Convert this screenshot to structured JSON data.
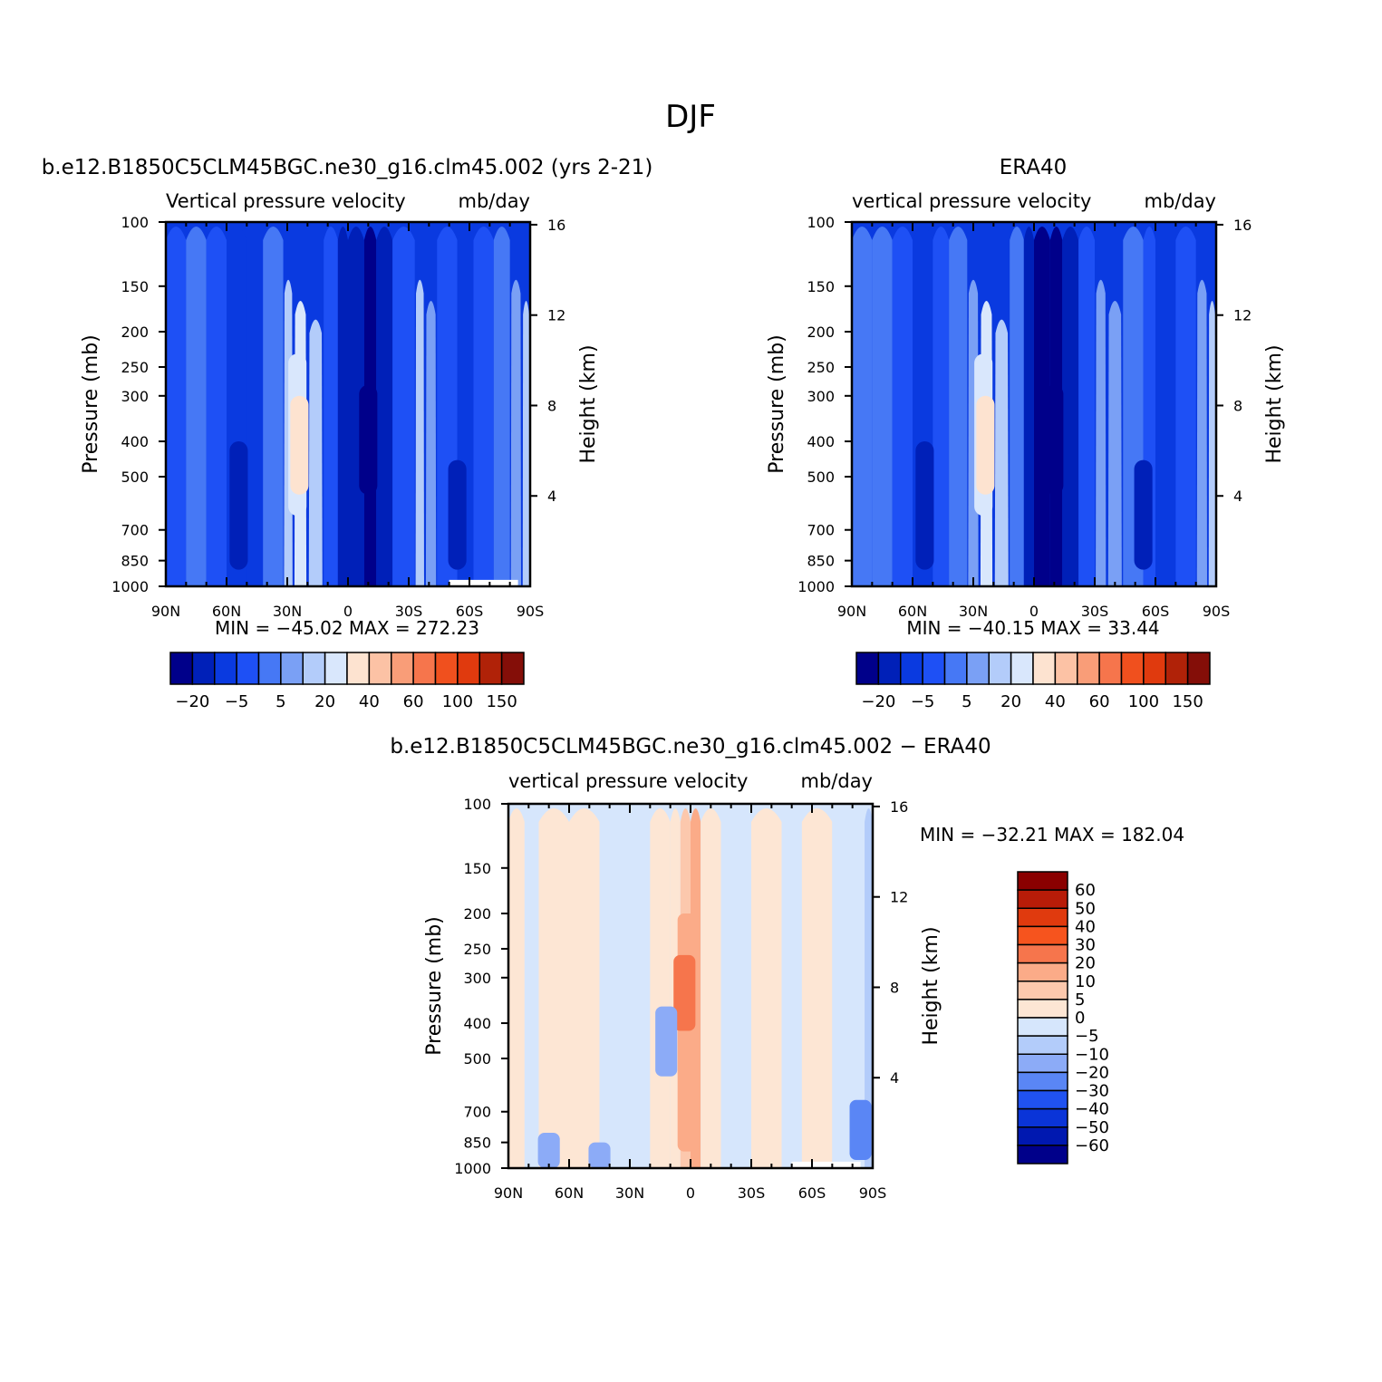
{
  "figure": {
    "title": "DJF"
  },
  "chart_data": [
    {
      "type": "heatmap",
      "title": "b.e12.B1850C5CLM45BGC.ne30_g16.clm45.002 (yrs 2-21)",
      "subtitle_left": "Vertical pressure velocity",
      "units": "mb/day",
      "xlabel": "",
      "ylabel": "Pressure (mb)",
      "ylabel_right": "Height (km)",
      "x_ticks": [
        "90N",
        "60N",
        "30N",
        "0",
        "30S",
        "60S",
        "90S"
      ],
      "y_ticks": [
        100,
        150,
        200,
        250,
        300,
        400,
        500,
        700,
        850,
        1000
      ],
      "y_ticks_right": [
        16,
        12,
        8,
        4
      ],
      "ylim": [
        1000,
        100
      ],
      "y_scale": "log",
      "stats": "MIN = -45.02   MAX = 272.23",
      "colorbar": {
        "orientation": "horizontal",
        "labels": [
          "-20",
          "-5",
          "5",
          "20",
          "40",
          "60",
          "100",
          "150"
        ],
        "colors": [
          "#00008a",
          "#0020b8",
          "#0a3ae0",
          "#1e50f5",
          "#4678f5",
          "#7aa0f5",
          "#b3ccfa",
          "#d9e7fc",
          "#fde3d0",
          "#fcc2a5",
          "#f99d78",
          "#f6754c",
          "#f0501e",
          "#e03a0e",
          "#b02208",
          "#840e08"
        ]
      },
      "bands": [
        {
          "lat": 90,
          "c": 3
        },
        {
          "lat": 80,
          "c": 4
        },
        {
          "lat": 70,
          "c": 3
        },
        {
          "lat": 60,
          "c": 2
        },
        {
          "lat": 50,
          "c": 2
        },
        {
          "lat": 42,
          "c": 4
        },
        {
          "lat": 32,
          "c": 6
        },
        {
          "lat": 27,
          "c": 7
        },
        {
          "lat": 20,
          "c": 6
        },
        {
          "lat": 12,
          "c": 3
        },
        {
          "lat": 5,
          "c": 1
        },
        {
          "lat": 0,
          "c": 1
        },
        {
          "lat": -8,
          "c": 0
        },
        {
          "lat": -14,
          "c": 1
        },
        {
          "lat": -22,
          "c": 3
        },
        {
          "lat": -33,
          "c": 6
        },
        {
          "lat": -38,
          "c": 5
        },
        {
          "lat": -44,
          "c": 3
        },
        {
          "lat": -54,
          "c": 2
        },
        {
          "lat": -62,
          "c": 3
        },
        {
          "lat": -72,
          "c": 4
        },
        {
          "lat": -80,
          "c": 5
        },
        {
          "lat": -86,
          "c": 6
        },
        {
          "lat": -90,
          "c": 7
        }
      ]
    },
    {
      "type": "heatmap",
      "title": "ERA40",
      "subtitle_left": "vertical pressure velocity",
      "units": "mb/day",
      "xlabel": "",
      "ylabel": "Pressure (mb)",
      "ylabel_right": "Height (km)",
      "x_ticks": [
        "90N",
        "60N",
        "30N",
        "0",
        "30S",
        "60S",
        "90S"
      ],
      "y_ticks": [
        100,
        150,
        200,
        250,
        300,
        400,
        500,
        700,
        850,
        1000
      ],
      "y_ticks_right": [
        16,
        12,
        8,
        4
      ],
      "ylim": [
        1000,
        100
      ],
      "y_scale": "log",
      "stats": "MIN = -40.15   MAX =  33.44",
      "colorbar": {
        "orientation": "horizontal",
        "labels": [
          "-20",
          "-5",
          "5",
          "20",
          "40",
          "60",
          "100",
          "150"
        ],
        "colors": [
          "#00008a",
          "#0020b8",
          "#0a3ae0",
          "#1e50f5",
          "#4678f5",
          "#7aa0f5",
          "#b3ccfa",
          "#d9e7fc",
          "#fde3d0",
          "#fcc2a5",
          "#f99d78",
          "#f6754c",
          "#f0501e",
          "#e03a0e",
          "#b02208",
          "#840e08"
        ]
      },
      "bands": [
        {
          "lat": 90,
          "c": 4
        },
        {
          "lat": 80,
          "c": 4
        },
        {
          "lat": 70,
          "c": 3
        },
        {
          "lat": 60,
          "c": 2
        },
        {
          "lat": 50,
          "c": 3
        },
        {
          "lat": 42,
          "c": 4
        },
        {
          "lat": 33,
          "c": 5
        },
        {
          "lat": 27,
          "c": 7
        },
        {
          "lat": 20,
          "c": 6
        },
        {
          "lat": 12,
          "c": 4
        },
        {
          "lat": 5,
          "c": 1
        },
        {
          "lat": 0,
          "c": 0
        },
        {
          "lat": -8,
          "c": 0
        },
        {
          "lat": -14,
          "c": 1
        },
        {
          "lat": -22,
          "c": 3
        },
        {
          "lat": -30,
          "c": 5
        },
        {
          "lat": -36,
          "c": 5
        },
        {
          "lat": -44,
          "c": 4
        },
        {
          "lat": -54,
          "c": 3
        },
        {
          "lat": -60,
          "c": 2
        },
        {
          "lat": -70,
          "c": 3
        },
        {
          "lat": -80,
          "c": 5
        },
        {
          "lat": -86,
          "c": 6
        },
        {
          "lat": -90,
          "c": 7
        }
      ]
    },
    {
      "type": "heatmap",
      "title": "b.e12.B1850C5CLM45BGC.ne30_g16.clm45.002 - ERA40",
      "subtitle_left": "vertical pressure velocity",
      "units": "mb/day",
      "xlabel": "",
      "ylabel": "Pressure (mb)",
      "ylabel_right": "Height (km)",
      "x_ticks": [
        "90N",
        "60N",
        "30N",
        "0",
        "30S",
        "60S",
        "90S"
      ],
      "y_ticks": [
        100,
        150,
        200,
        250,
        300,
        400,
        500,
        700,
        850,
        1000
      ],
      "y_ticks_right": [
        16,
        12,
        8,
        4
      ],
      "ylim": [
        1000,
        100
      ],
      "y_scale": "log",
      "stats": "MIN = -32.21   MAX = 182.04",
      "colorbar": {
        "orientation": "vertical",
        "labels": [
          "60",
          "50",
          "40",
          "30",
          "20",
          "10",
          "5",
          "0",
          "-5",
          "-10",
          "-20",
          "-30",
          "-40",
          "-50",
          "-60"
        ],
        "colors": [
          "#8a0000",
          "#b81c08",
          "#e03a0e",
          "#f6541e",
          "#f6754c",
          "#fbab88",
          "#fcc8ad",
          "#fde6d4",
          "#d6e6fc",
          "#b3ccfa",
          "#8cabf7",
          "#5a86f5",
          "#2052f0",
          "#0a34d8",
          "#0018b0",
          "#00008a"
        ]
      },
      "bands": [
        {
          "lat": 90,
          "c": 7
        },
        {
          "lat": 82,
          "c": 8
        },
        {
          "lat": 75,
          "c": 7
        },
        {
          "lat": 60,
          "c": 7
        },
        {
          "lat": 45,
          "c": 8
        },
        {
          "lat": 35,
          "c": 8
        },
        {
          "lat": 20,
          "c": 7
        },
        {
          "lat": 10,
          "c": 7
        },
        {
          "lat": 5,
          "c": 6
        },
        {
          "lat": 0,
          "c": 5
        },
        {
          "lat": -5,
          "c": 7
        },
        {
          "lat": -15,
          "c": 8
        },
        {
          "lat": -30,
          "c": 7
        },
        {
          "lat": -45,
          "c": 8
        },
        {
          "lat": -55,
          "c": 7
        },
        {
          "lat": -70,
          "c": 8
        },
        {
          "lat": -80,
          "c": 8
        },
        {
          "lat": -86,
          "c": 9
        },
        {
          "lat": -90,
          "c": 6
        }
      ]
    }
  ]
}
